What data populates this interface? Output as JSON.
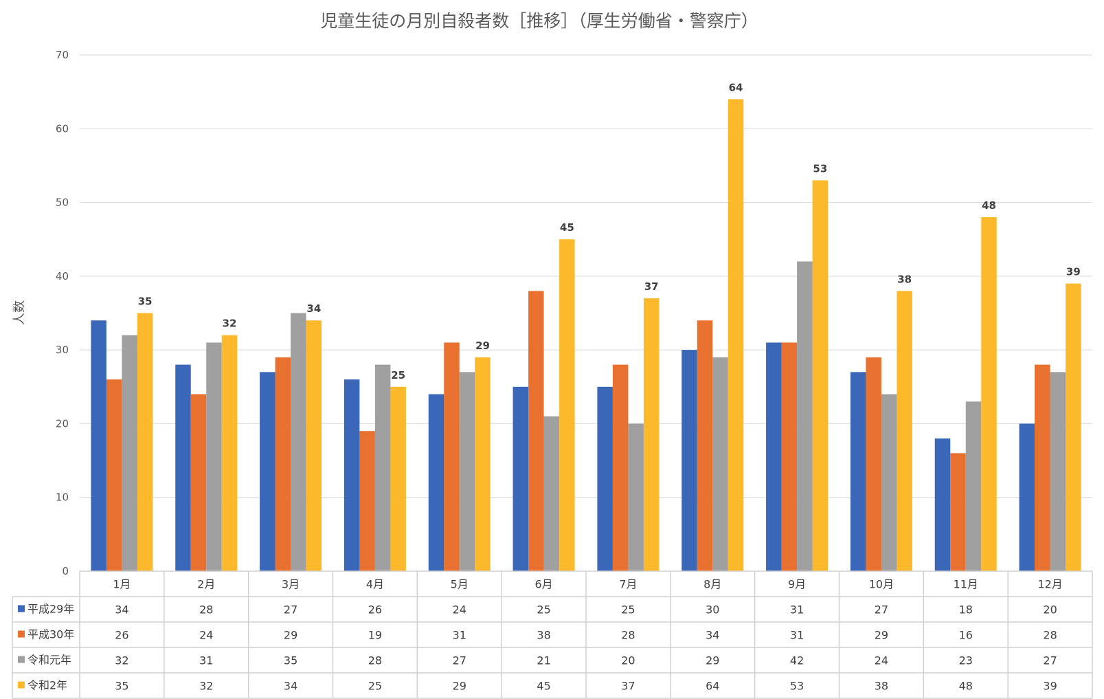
{
  "chart_data": {
    "type": "bar",
    "title": "児童生徒の月別自殺者数［推移］（厚生労働省・警察庁）",
    "ylabel": "人数",
    "xlabel": "",
    "ylim": [
      0,
      70
    ],
    "yticks": [
      0,
      10,
      20,
      30,
      40,
      50,
      60,
      70
    ],
    "grid": true,
    "legend": "data-table-rows",
    "categories": [
      "1月",
      "2月",
      "3月",
      "4月",
      "5月",
      "6月",
      "7月",
      "8月",
      "9月",
      "10月",
      "11月",
      "12月"
    ],
    "series": [
      {
        "name": "平成29年",
        "color": "#3a67b8",
        "values": [
          34,
          28,
          27,
          26,
          24,
          25,
          25,
          30,
          31,
          27,
          18,
          20
        ],
        "show_labels": false
      },
      {
        "name": "平成30年",
        "color": "#e8712f",
        "values": [
          26,
          24,
          29,
          19,
          31,
          38,
          28,
          34,
          31,
          29,
          16,
          28
        ],
        "show_labels": false
      },
      {
        "name": "令和元年",
        "color": "#a0a0a0",
        "values": [
          32,
          31,
          35,
          28,
          27,
          21,
          20,
          29,
          42,
          24,
          23,
          27
        ],
        "show_labels": false
      },
      {
        "name": "令和2年",
        "color": "#fbb92b",
        "values": [
          35,
          32,
          34,
          25,
          29,
          45,
          37,
          64,
          53,
          38,
          48,
          39
        ],
        "show_labels": true
      }
    ]
  }
}
